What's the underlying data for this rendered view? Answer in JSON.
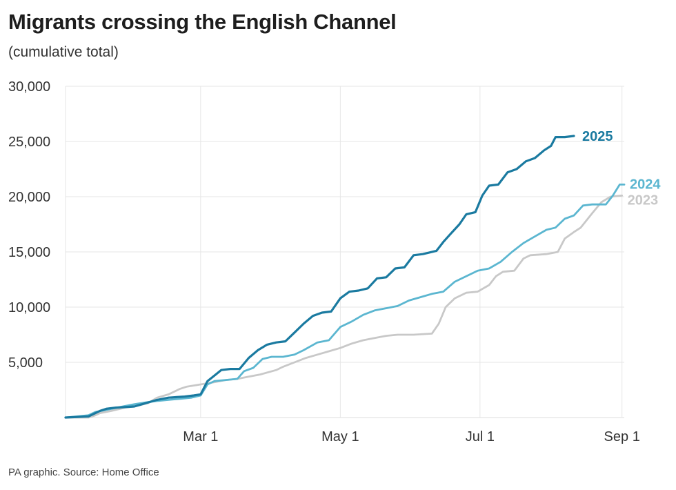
{
  "title": "Migrants crossing the English Channel",
  "subtitle": "(cumulative total)",
  "footer": "PA graphic. Source: Home Office",
  "chart_data": {
    "type": "line",
    "title": "Migrants crossing the English Channel",
    "subtitle": "(cumulative total)",
    "xlabel": "",
    "ylabel": "",
    "x_domain_days": [
      0,
      244
    ],
    "ylim": [
      0,
      30000
    ],
    "y_ticks": [
      {
        "value": 5000,
        "label": "5,000"
      },
      {
        "value": 10000,
        "label": "10,000"
      },
      {
        "value": 15000,
        "label": "15,000"
      },
      {
        "value": 20000,
        "label": "20,000"
      },
      {
        "value": 25000,
        "label": "25,000"
      },
      {
        "value": 30000,
        "label": "30,000"
      }
    ],
    "x_ticks": [
      {
        "day": 59,
        "label": "Mar 1"
      },
      {
        "day": 120,
        "label": "May 1"
      },
      {
        "day": 181,
        "label": "Jul 1"
      },
      {
        "day": 243,
        "label": "Sep 1"
      }
    ],
    "grid": true,
    "legend": "direct labels at line ends",
    "series": [
      {
        "name": "2023",
        "color": "#c8c8c8",
        "points": [
          [
            0,
            0
          ],
          [
            10,
            0
          ],
          [
            13,
            200
          ],
          [
            15,
            400
          ],
          [
            20,
            600
          ],
          [
            26,
            900
          ],
          [
            30,
            1000
          ],
          [
            36,
            1300
          ],
          [
            40,
            1800
          ],
          [
            45,
            2100
          ],
          [
            50,
            2600
          ],
          [
            53,
            2800
          ],
          [
            59,
            3000
          ],
          [
            62,
            3100
          ],
          [
            65,
            3200
          ],
          [
            70,
            3400
          ],
          [
            75,
            3500
          ],
          [
            80,
            3700
          ],
          [
            85,
            3900
          ],
          [
            92,
            4300
          ],
          [
            95,
            4600
          ],
          [
            100,
            5000
          ],
          [
            105,
            5400
          ],
          [
            110,
            5700
          ],
          [
            115,
            6000
          ],
          [
            120,
            6300
          ],
          [
            125,
            6700
          ],
          [
            130,
            7000
          ],
          [
            135,
            7200
          ],
          [
            140,
            7400
          ],
          [
            145,
            7500
          ],
          [
            152,
            7500
          ],
          [
            160,
            7600
          ],
          [
            163,
            8500
          ],
          [
            166,
            10000
          ],
          [
            170,
            10800
          ],
          [
            175,
            11300
          ],
          [
            180,
            11400
          ],
          [
            185,
            12000
          ],
          [
            188,
            12800
          ],
          [
            191,
            13200
          ],
          [
            196,
            13300
          ],
          [
            200,
            14400
          ],
          [
            203,
            14700
          ],
          [
            210,
            14800
          ],
          [
            215,
            15000
          ],
          [
            218,
            16200
          ],
          [
            222,
            16800
          ],
          [
            225,
            17200
          ],
          [
            230,
            18500
          ],
          [
            234,
            19500
          ],
          [
            238,
            20000
          ],
          [
            243,
            20100
          ]
        ]
      },
      {
        "name": "2024",
        "color": "#5bb6d0",
        "points": [
          [
            0,
            0
          ],
          [
            5,
            100
          ],
          [
            10,
            200
          ],
          [
            13,
            500
          ],
          [
            18,
            700
          ],
          [
            25,
            1000
          ],
          [
            30,
            1200
          ],
          [
            36,
            1400
          ],
          [
            40,
            1500
          ],
          [
            45,
            1600
          ],
          [
            50,
            1700
          ],
          [
            55,
            1800
          ],
          [
            59,
            2000
          ],
          [
            62,
            3000
          ],
          [
            65,
            3300
          ],
          [
            70,
            3400
          ],
          [
            75,
            3500
          ],
          [
            78,
            4200
          ],
          [
            82,
            4500
          ],
          [
            86,
            5300
          ],
          [
            90,
            5500
          ],
          [
            95,
            5500
          ],
          [
            100,
            5700
          ],
          [
            104,
            6100
          ],
          [
            110,
            6800
          ],
          [
            115,
            7000
          ],
          [
            120,
            8200
          ],
          [
            125,
            8700
          ],
          [
            130,
            9300
          ],
          [
            135,
            9700
          ],
          [
            140,
            9900
          ],
          [
            145,
            10100
          ],
          [
            150,
            10600
          ],
          [
            155,
            10900
          ],
          [
            160,
            11200
          ],
          [
            165,
            11400
          ],
          [
            170,
            12300
          ],
          [
            175,
            12800
          ],
          [
            180,
            13300
          ],
          [
            185,
            13500
          ],
          [
            190,
            14100
          ],
          [
            195,
            15000
          ],
          [
            200,
            15800
          ],
          [
            205,
            16400
          ],
          [
            210,
            17000
          ],
          [
            214,
            17200
          ],
          [
            218,
            18000
          ],
          [
            222,
            18300
          ],
          [
            226,
            19200
          ],
          [
            230,
            19300
          ],
          [
            236,
            19300
          ],
          [
            239,
            20100
          ],
          [
            242,
            21100
          ],
          [
            244,
            21100
          ]
        ]
      },
      {
        "name": "2025",
        "color": "#1a7aa0",
        "points": [
          [
            0,
            0
          ],
          [
            10,
            100
          ],
          [
            15,
            600
          ],
          [
            18,
            800
          ],
          [
            22,
            900
          ],
          [
            30,
            1000
          ],
          [
            35,
            1300
          ],
          [
            40,
            1600
          ],
          [
            45,
            1800
          ],
          [
            52,
            1900
          ],
          [
            56,
            2000
          ],
          [
            59,
            2100
          ],
          [
            62,
            3300
          ],
          [
            65,
            3800
          ],
          [
            68,
            4300
          ],
          [
            72,
            4400
          ],
          [
            76,
            4400
          ],
          [
            80,
            5400
          ],
          [
            84,
            6100
          ],
          [
            88,
            6600
          ],
          [
            92,
            6800
          ],
          [
            96,
            6900
          ],
          [
            100,
            7700
          ],
          [
            104,
            8500
          ],
          [
            108,
            9200
          ],
          [
            112,
            9500
          ],
          [
            116,
            9600
          ],
          [
            120,
            10800
          ],
          [
            124,
            11400
          ],
          [
            128,
            11500
          ],
          [
            132,
            11700
          ],
          [
            136,
            12600
          ],
          [
            140,
            12700
          ],
          [
            144,
            13500
          ],
          [
            148,
            13600
          ],
          [
            152,
            14700
          ],
          [
            156,
            14800
          ],
          [
            162,
            15100
          ],
          [
            165,
            15900
          ],
          [
            168,
            16600
          ],
          [
            172,
            17500
          ],
          [
            175,
            18400
          ],
          [
            179,
            18600
          ],
          [
            182,
            20100
          ],
          [
            185,
            21000
          ],
          [
            189,
            21100
          ],
          [
            193,
            22200
          ],
          [
            197,
            22500
          ],
          [
            201,
            23200
          ],
          [
            205,
            23500
          ],
          [
            209,
            24200
          ],
          [
            212,
            24600
          ],
          [
            214,
            25400
          ],
          [
            218,
            25400
          ],
          [
            222,
            25500
          ]
        ]
      }
    ],
    "end_labels": [
      {
        "series": "2025",
        "text": "2025"
      },
      {
        "series": "2024",
        "text": "2024"
      },
      {
        "series": "2023",
        "text": "2023"
      }
    ]
  }
}
